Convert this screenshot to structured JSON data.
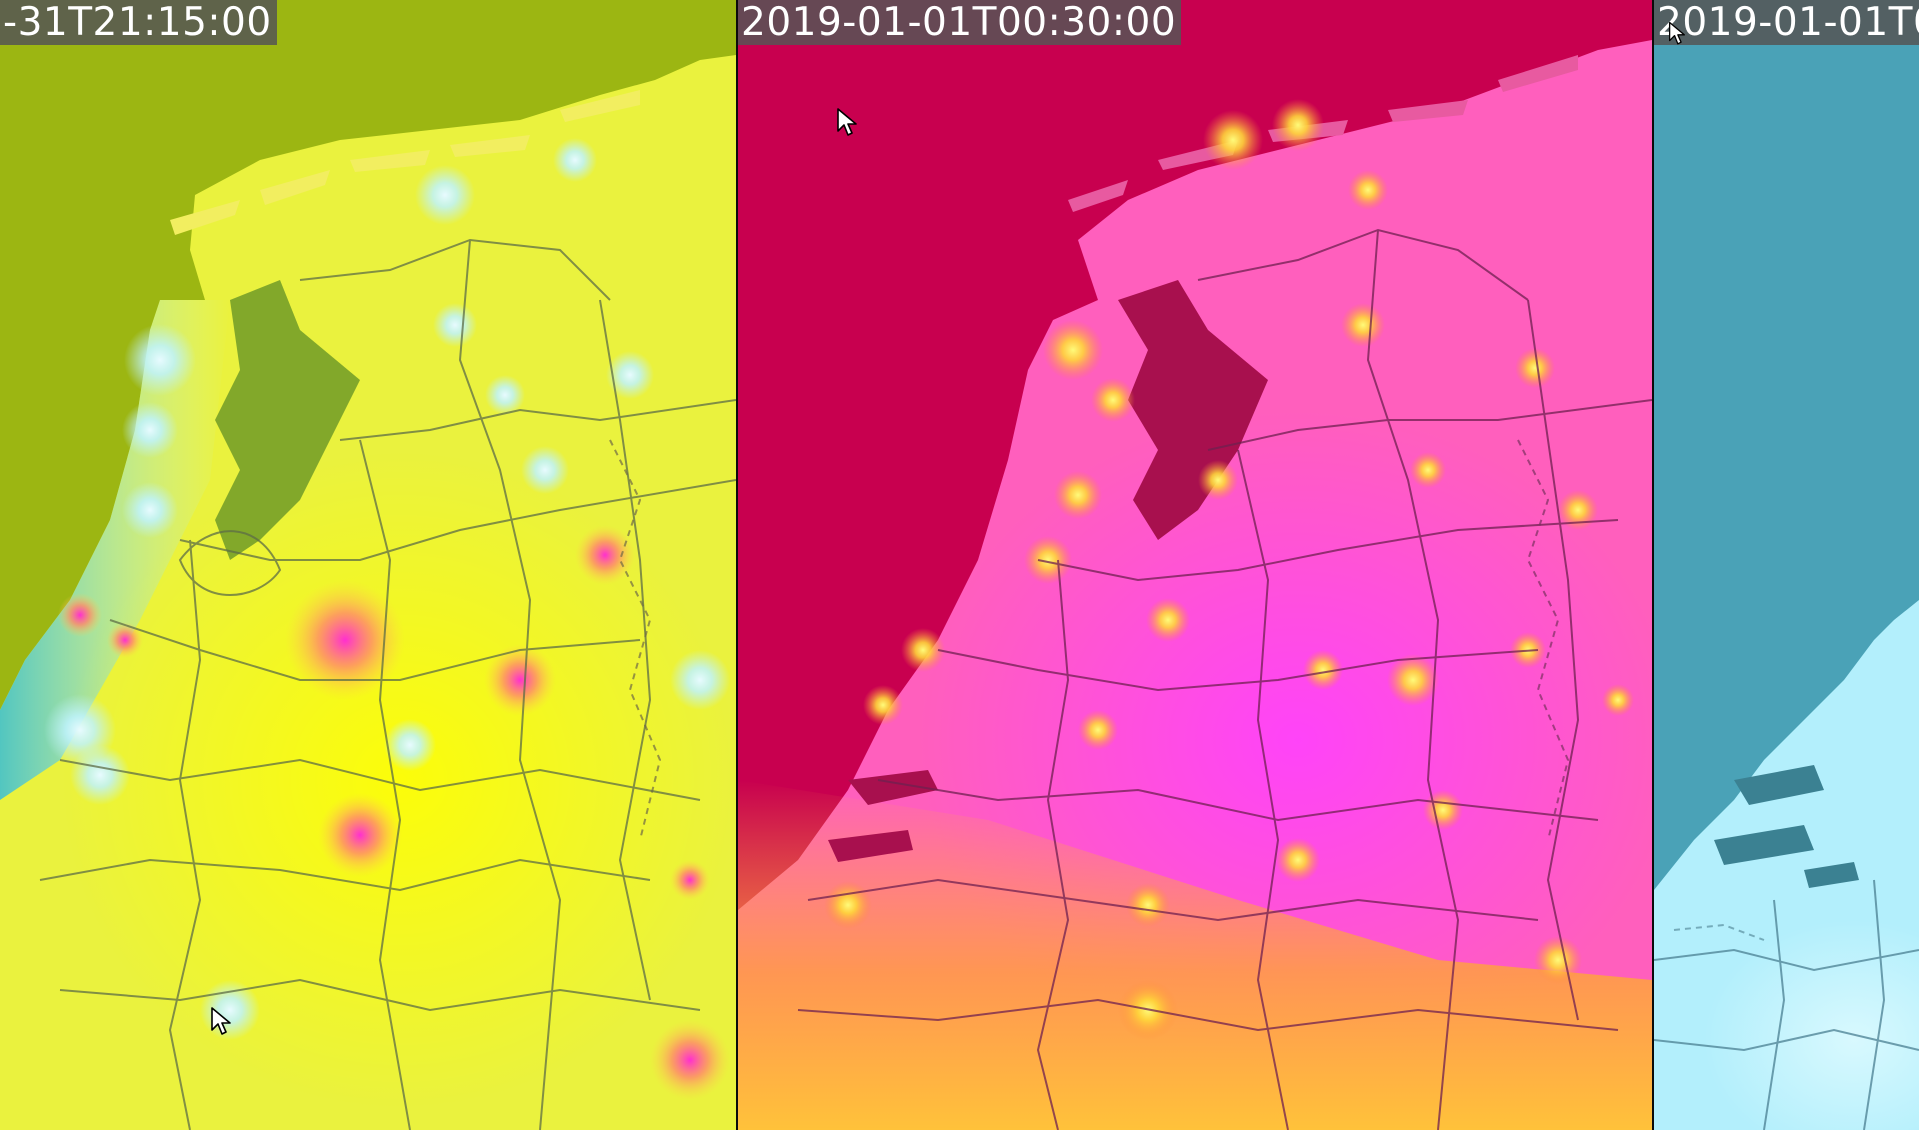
{
  "panels": [
    {
      "timestamp": "-31T21:15:00",
      "colors": {
        "sea": "#9cb612",
        "land": "#eef23a",
        "hot": "#f6f200",
        "city": "#bff3ff",
        "hotspot": "#ff38c6",
        "roads": "#5d6d46",
        "water": "#7c9f2a"
      }
    },
    {
      "timestamp": "2019-01-01T00:30:00",
      "colors": {
        "sea": "#c8004f",
        "land": "#ff5fbd",
        "hot": "#ff52ff",
        "city": "#ffe24a",
        "south": "#ffb03a",
        "roads": "#6f2050",
        "water": "#a8104e"
      }
    },
    {
      "timestamp": "2019-01-01T0",
      "colors": {
        "sea": "#4aa2b7",
        "land": "#b3effc",
        "roads": "#4a7f92",
        "water": "#3b8192"
      }
    }
  ],
  "icons": {
    "cursor": "mouse-pointer-icon"
  }
}
